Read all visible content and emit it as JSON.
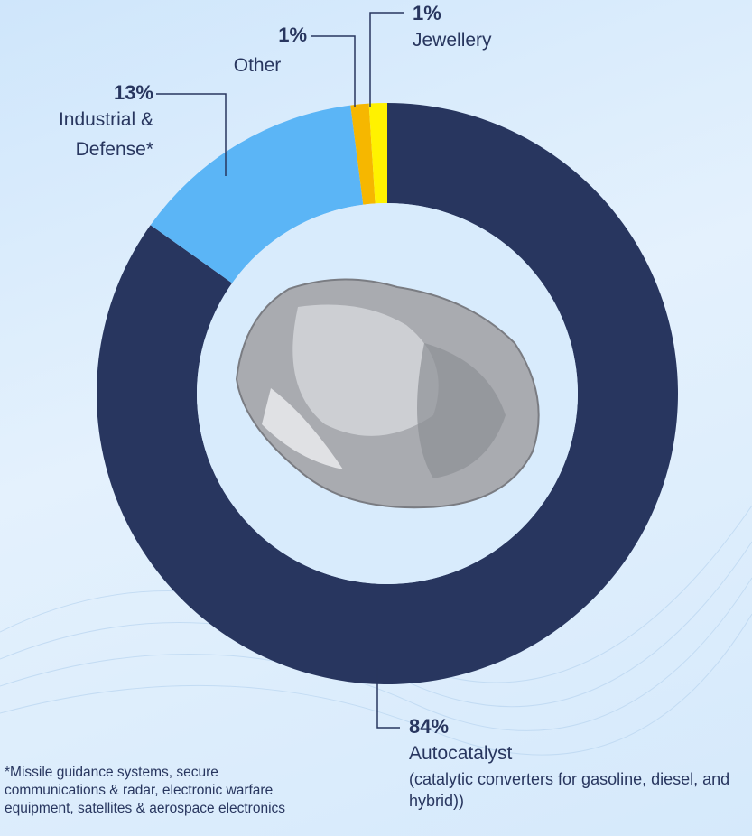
{
  "chart_data": {
    "type": "pie",
    "categories": [
      "Autocatalyst",
      "Industrial & Defense*",
      "Other",
      "Jewellery"
    ],
    "values": [
      84,
      13,
      1,
      1
    ],
    "value_labels": [
      "84%",
      "13%",
      "1%",
      "1%"
    ],
    "colors": [
      "#28365f",
      "#5bb5f6",
      "#f6b700",
      "#fff200"
    ],
    "donut": true,
    "category_note": "(catalytic converters for gasoline, diesel, and hybrid))",
    "footnote": "*Missile guidance systems, secure communications & radar, electronic warfare equipment, satellites & aerospace electronics"
  }
}
